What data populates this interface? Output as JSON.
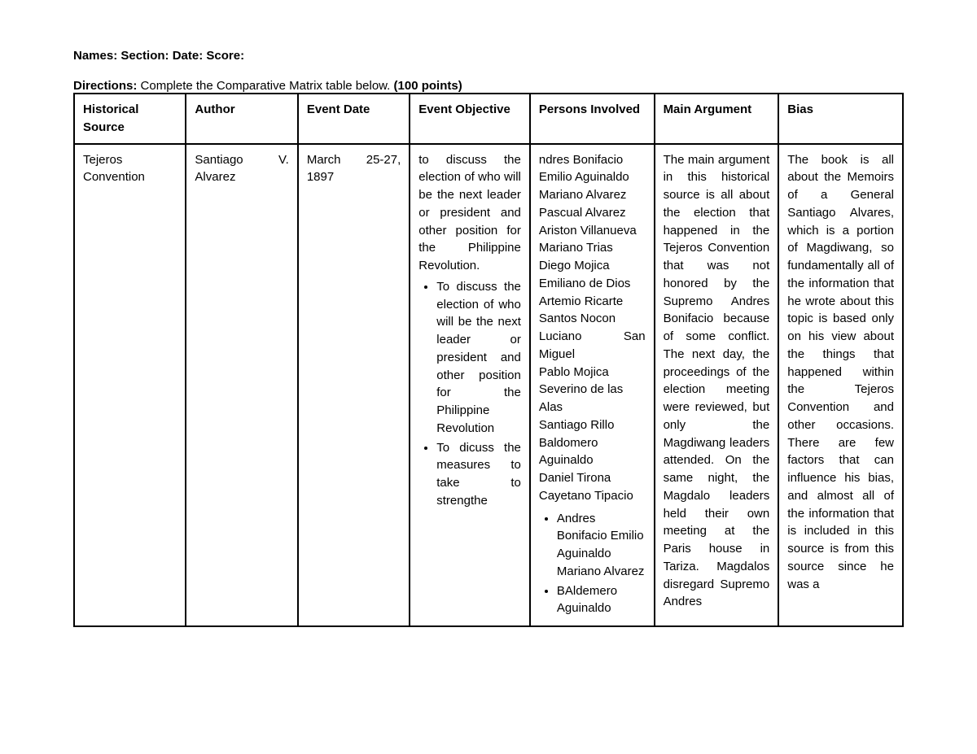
{
  "header": {
    "line": "Names: Section: Date: Score:"
  },
  "directions": {
    "label": "Directions:",
    "text": " Complete the Comparative Matrix table below. ",
    "points": "(100 points)"
  },
  "columns": {
    "c1": "Historical Source",
    "c2": "Author",
    "c3": "Event Date",
    "c4": "Event Objective",
    "c5": "Persons Involved",
    "c6": "Main Argument",
    "c7": "Bias"
  },
  "row": {
    "source": "Tejeros Convention",
    "author": "Santiago V. Alvarez",
    "date": "March 25-27, 1897",
    "objective": {
      "intro": "to discuss the election of who will be the next leader or president and other position for the Philippine Revolution.",
      "bullets": [
        "To discuss the election of who will be the next leader or president and other position for the Philippine Revolution",
        "To dicuss the measures to take to strengthe"
      ]
    },
    "persons": {
      "names": [
        "ndres Bonifacio",
        "Emilio Aguinaldo",
        "Mariano Alvarez",
        "Pascual Alvarez",
        "Ariston Villanueva",
        "Mariano Trias",
        "Diego Mojica",
        "Emiliano de Dios",
        "Artemio Ricarte",
        "Santos Nocon",
        "Luciano San Miguel",
        "Pablo Mojica",
        "Severino de las Alas",
        "Santiago Rillo",
        "Baldomero Aguinaldo",
        "Daniel Tirona",
        "Cayetano Tipacio"
      ],
      "bullets": [
        "Andres Bonifacio Emilio Aguinaldo Mariano Alvarez",
        "BAldemero Aguinaldo"
      ]
    },
    "argument": "The main argument in this historical source is all about the election that happened in the Tejeros Convention that was not honored by the Supremo Andres Bonifacio because of some conflict. The next day, the proceedings of the election meeting were reviewed, but only the Magdiwang leaders attended. On the same night, the Magdalo leaders held their own meeting at the Paris house in Tariza. Magdalos disregard Supremo Andres",
    "bias": "The book is all about the Memoirs of a General Santiago Alvares, which is a portion of Magdiwang, so fundamentally all of the information that he wrote about this topic is based only on his view about the things that happened within the Tejeros Convention and other occasions. There are few factors that can influence his bias, and almost all of the information that is included in this source is from this source since he was a"
  }
}
